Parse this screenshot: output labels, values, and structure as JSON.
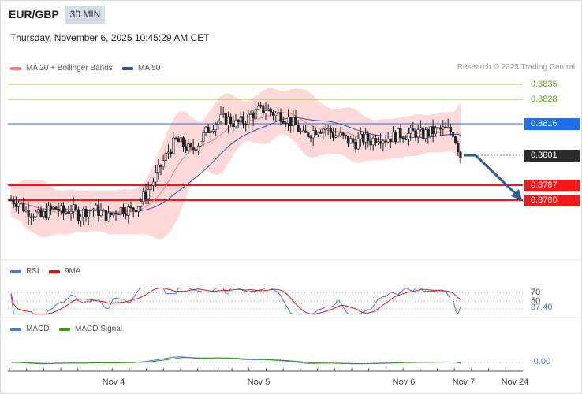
{
  "header": {
    "symbol": "EUR/GBP",
    "interval": "30 MIN",
    "datetime": "Thursday, November 6, 2025 10:45:29 AM CET"
  },
  "legend": {
    "ma20": "MA 20 + Bollinger Bands",
    "ma50": "MA 50",
    "credit": "Research © 2025 Trading Central"
  },
  "colors": {
    "ma20": "#f08080",
    "ma50": "#2e5597",
    "bollinger_fill": "#ffd9d9",
    "support": "#f01818",
    "pivot": "#1f6fe8",
    "resistance": "#8cc63e",
    "rsi": "#4a77d4",
    "rsi_ma": "#e01010",
    "macd": "#4a77d4",
    "macd_signal": "#3a9a10",
    "forecast_arrow": "#2d5d9e"
  },
  "price_levels": [
    {
      "value": "0.8835",
      "kind": "resistance"
    },
    {
      "value": "0.8828",
      "kind": "resistance"
    },
    {
      "value": "0.8816",
      "kind": "pivot"
    },
    {
      "value": "0.8801",
      "kind": "current"
    },
    {
      "value": "0.8787",
      "kind": "support"
    },
    {
      "value": "0.8780",
      "kind": "support"
    }
  ],
  "rsi_panel": {
    "label": "RSI",
    "ma_label": "9MA",
    "level_70": "70",
    "level_50": "50",
    "value": "37.40"
  },
  "macd_panel": {
    "label": "MACD",
    "signal_label": "MACD Signal",
    "value": "-0.00"
  },
  "x_axis": {
    "ticks": [
      "Nov 4",
      "Nov 5",
      "Nov 6",
      "Nov 7",
      "Nov 24"
    ]
  },
  "chart_data": {
    "type": "candlestick",
    "instrument": "EUR/GBP",
    "timeframe": "30 MIN",
    "ylim": [
      0.876,
      0.8842
    ],
    "close_approx": [
      0.878,
      0.8779,
      0.8775,
      0.8774,
      0.8772,
      0.8775,
      0.8776,
      0.8774,
      0.8776,
      0.8773,
      0.8775,
      0.8776,
      0.8774,
      0.8772,
      0.8775,
      0.8776,
      0.8775,
      0.8778,
      0.8783,
      0.8789,
      0.8796,
      0.8803,
      0.8808,
      0.8806,
      0.8803,
      0.8807,
      0.8812,
      0.8816,
      0.8818,
      0.8818,
      0.8816,
      0.8817,
      0.882,
      0.8822,
      0.8823,
      0.8821,
      0.882,
      0.8818,
      0.8815,
      0.881,
      0.8812,
      0.8814,
      0.8814,
      0.8811,
      0.881,
      0.8808,
      0.8807,
      0.8809,
      0.8808,
      0.881,
      0.8809,
      0.881,
      0.8811,
      0.8811,
      0.8812,
      0.8811,
      0.8812,
      0.8813,
      0.8813,
      0.8812,
      0.8801
    ],
    "levels": {
      "resistance": [
        0.8835,
        0.8828
      ],
      "pivot": 0.8816,
      "current": 0.8801,
      "support": [
        0.8787,
        0.878
      ]
    },
    "rsi_last": 37.4,
    "macd_last": -0.0
  }
}
